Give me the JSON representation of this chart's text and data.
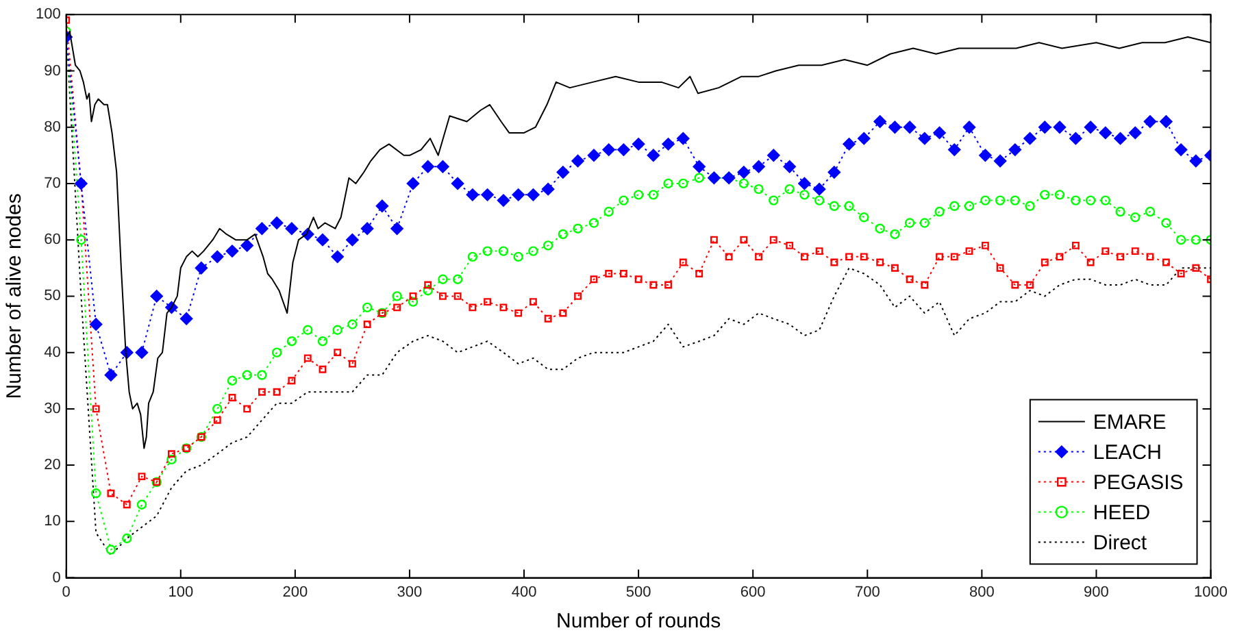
{
  "chart_data": {
    "type": "line",
    "xlabel": "Number of rounds",
    "ylabel": "Number of alive nodes",
    "xlim": [
      0,
      1000
    ],
    "ylim": [
      0,
      100
    ],
    "xticks": [
      0,
      100,
      200,
      300,
      400,
      500,
      600,
      700,
      800,
      900,
      1000
    ],
    "yticks": [
      0,
      10,
      20,
      30,
      40,
      50,
      60,
      70,
      80,
      90,
      100
    ],
    "legend": "bottom right",
    "x": [
      0,
      13,
      26,
      39,
      53,
      66,
      79,
      92,
      105,
      118,
      132,
      145,
      158,
      171,
      184,
      197,
      211,
      224,
      237,
      250,
      263,
      276,
      289,
      303,
      316,
      329,
      342,
      355,
      368,
      382,
      395,
      408,
      421,
      434,
      447,
      461,
      474,
      487,
      500,
      513,
      526,
      539,
      553,
      566,
      579,
      592,
      605,
      618,
      632,
      645,
      658,
      671,
      684,
      697,
      711,
      724,
      737,
      750,
      763,
      776,
      789,
      803,
      816,
      829,
      842,
      855,
      868,
      882,
      895,
      908,
      921,
      934,
      947,
      961,
      974,
      987,
      1000
    ],
    "series": [
      {
        "name": "EMARE",
        "color": "#000000",
        "line_style": "solid",
        "marker": "none",
        "x": [
          0,
          3,
          8,
          12,
          15,
          18,
          20,
          22,
          25,
          28,
          33,
          36,
          40,
          44,
          48,
          52,
          55,
          58,
          62,
          65,
          68,
          70,
          72,
          76,
          80,
          84,
          88,
          92,
          97,
          100,
          105,
          110,
          115,
          120,
          128,
          134,
          140,
          148,
          158,
          165,
          172,
          176,
          180,
          186,
          193,
          198,
          203,
          210,
          216,
          220,
          226,
          235,
          240,
          247,
          253,
          260,
          266,
          274,
          282,
          295,
          300,
          310,
          318,
          325,
          335,
          350,
          362,
          370,
          380,
          387,
          400,
          410,
          420,
          428,
          440,
          460,
          480,
          500,
          520,
          535,
          545,
          552,
          570,
          590,
          605,
          620,
          640,
          660,
          680,
          700,
          720,
          740,
          760,
          780,
          800,
          830,
          850,
          870,
          900,
          920,
          940,
          960,
          980,
          1000
        ],
        "values": [
          96,
          97,
          91,
          90,
          88,
          85,
          86,
          81,
          84,
          85,
          84,
          84,
          79,
          72,
          55,
          40,
          33,
          30,
          31,
          29,
          23,
          25,
          31,
          33,
          39,
          40,
          47,
          48,
          50,
          55,
          57,
          58,
          57,
          58,
          60,
          62,
          61,
          60,
          60,
          61,
          57,
          54,
          53,
          51,
          47,
          56,
          60,
          61,
          64,
          62,
          63,
          62,
          64,
          71,
          70,
          72,
          74,
          76,
          77,
          75,
          75,
          76,
          78,
          75,
          82,
          81,
          83,
          84,
          81,
          79,
          79,
          80,
          84,
          88,
          87,
          88,
          89,
          88,
          88,
          87,
          89,
          86,
          87,
          89,
          89,
          90,
          91,
          91,
          92,
          91,
          93,
          94,
          93,
          94,
          94,
          94,
          95,
          94,
          95,
          94,
          95,
          95,
          96,
          95
        ]
      },
      {
        "name": "LEACH",
        "color": "#0000ff",
        "line_style": "dotted",
        "marker": "diamond",
        "values": [
          96,
          70,
          45,
          36,
          40,
          40,
          50,
          48,
          46,
          55,
          57,
          58,
          59,
          62,
          63,
          62,
          61,
          60,
          57,
          60,
          62,
          66,
          62,
          70,
          73,
          73,
          70,
          68,
          68,
          67,
          68,
          68,
          69,
          72,
          74,
          75,
          76,
          76,
          77,
          75,
          77,
          78,
          73,
          71,
          71,
          72,
          73,
          75,
          73,
          70,
          69,
          72,
          77,
          78,
          81,
          80,
          80,
          78,
          79,
          76,
          80,
          75,
          74,
          76,
          78,
          80,
          80,
          78,
          80,
          79,
          78,
          79,
          81,
          81,
          76,
          74,
          75
        ]
      },
      {
        "name": "PEGASIS",
        "color": "#ff0000",
        "line_style": "dotted",
        "marker": "square",
        "values": [
          99,
          70,
          30,
          15,
          13,
          18,
          17,
          22,
          23,
          25,
          28,
          32,
          30,
          33,
          33,
          35,
          39,
          37,
          40,
          38,
          45,
          47,
          48,
          50,
          52,
          50,
          50,
          48,
          49,
          48,
          47,
          49,
          46,
          47,
          50,
          53,
          54,
          54,
          53,
          52,
          52,
          56,
          54,
          60,
          57,
          60,
          57,
          60,
          59,
          57,
          58,
          56,
          57,
          57,
          56,
          55,
          53,
          52,
          57,
          57,
          58,
          59,
          55,
          52,
          52,
          56,
          57,
          59,
          56,
          58,
          57,
          58,
          57,
          56,
          54,
          55,
          53
        ]
      },
      {
        "name": "HEED",
        "color": "#00ff00",
        "line_style": "dotted",
        "marker": "circle",
        "values": [
          97,
          60,
          15,
          5,
          7,
          13,
          17,
          21,
          23,
          25,
          30,
          35,
          36,
          36,
          40,
          42,
          44,
          42,
          44,
          45,
          48,
          47,
          50,
          49,
          51,
          53,
          53,
          57,
          58,
          58,
          57,
          58,
          59,
          61,
          62,
          63,
          65,
          67,
          68,
          68,
          70,
          70,
          71,
          71,
          71,
          70,
          69,
          67,
          69,
          68,
          67,
          66,
          66,
          64,
          62,
          61,
          63,
          63,
          65,
          66,
          66,
          67,
          67,
          67,
          66,
          68,
          68,
          67,
          67,
          67,
          65,
          64,
          65,
          63,
          60,
          60,
          60
        ]
      },
      {
        "name": "Direct",
        "color": "#000000",
        "line_style": "dotted",
        "marker": "none",
        "values": [
          97,
          50,
          8,
          4,
          7,
          9,
          11,
          16,
          19,
          20,
          22,
          24,
          25,
          28,
          31,
          31,
          33,
          33,
          33,
          33,
          36,
          36,
          40,
          42,
          43,
          42,
          40,
          41,
          42,
          40,
          38,
          39,
          37,
          37,
          39,
          40,
          40,
          40,
          41,
          42,
          45,
          41,
          42,
          43,
          46,
          45,
          47,
          46,
          45,
          43,
          44,
          50,
          55,
          54,
          52,
          48,
          50,
          47,
          49,
          43,
          46,
          47,
          49,
          49,
          51,
          50,
          52,
          53,
          53,
          52,
          52,
          53,
          52,
          52,
          55,
          55,
          55
        ]
      }
    ]
  }
}
